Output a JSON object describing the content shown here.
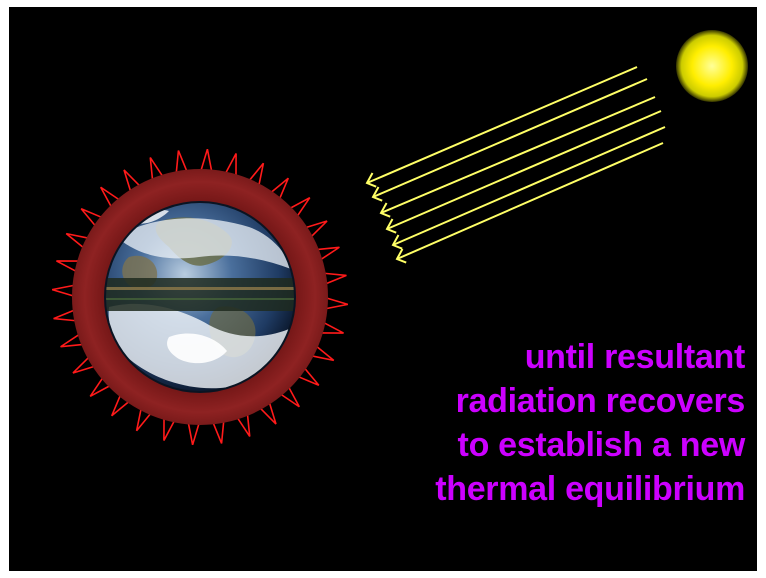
{
  "caption": {
    "lines": [
      "until resultant",
      "radiation recovers",
      "to establish a new",
      "thermal equilibrium"
    ]
  },
  "colors": {
    "background": "#000000",
    "caption": "#cc00ff",
    "atmosphere": "#8b1a1a",
    "outgoing_radiation": "#ff1a1a",
    "sunlight": "#ffff66",
    "sun": "#ffee00"
  },
  "icons": {
    "sun": "sun-icon",
    "earth": "earth-globe-icon"
  }
}
